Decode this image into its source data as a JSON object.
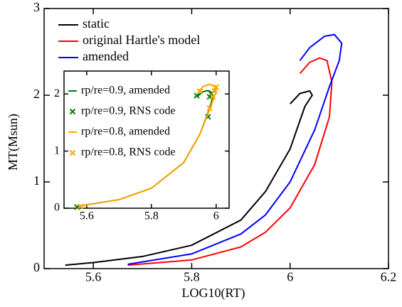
{
  "chart_data": [
    {
      "type": "line",
      "xlabel": "LOG10(RT)",
      "ylabel": "MT(Msun)",
      "xlim": [
        5.5,
        6.2
      ],
      "xticks": [
        5.6,
        5.8,
        6,
        6.2
      ],
      "ylim": [
        0,
        3
      ],
      "yticks": [
        0,
        1,
        2,
        3
      ],
      "legend": "upper left",
      "series": [
        {
          "name": "static",
          "color": "#000000",
          "x": [
            5.543,
            5.6,
            5.7,
            5.8,
            5.9,
            5.95,
            6.0,
            6.03,
            6.045,
            6.04,
            6.02,
            6.0
          ],
          "values": [
            0.04,
            0.07,
            0.14,
            0.27,
            0.56,
            0.89,
            1.38,
            1.87,
            2.0,
            2.05,
            2.02,
            1.9
          ]
        },
        {
          "name": "original Hartle's model",
          "color": "#ff0000",
          "x": [
            5.67,
            5.8,
            5.9,
            5.95,
            6.0,
            6.05,
            6.08,
            6.085,
            6.075,
            6.06,
            6.04,
            6.02
          ],
          "values": [
            0.04,
            0.1,
            0.25,
            0.42,
            0.7,
            1.2,
            1.75,
            2.15,
            2.4,
            2.43,
            2.38,
            2.25
          ]
        },
        {
          "name": "amended",
          "color": "#0000ff",
          "x": [
            5.67,
            5.8,
            5.9,
            5.95,
            6.0,
            6.05,
            6.08,
            6.1,
            6.105,
            6.09,
            6.07,
            6.04,
            6.02
          ],
          "values": [
            0.05,
            0.17,
            0.4,
            0.62,
            1.0,
            1.6,
            2.1,
            2.4,
            2.6,
            2.7,
            2.68,
            2.55,
            2.4
          ]
        }
      ]
    },
    {
      "type": "line",
      "xlim": [
        5.53,
        6.04
      ],
      "xticks": [
        5.6,
        5.8,
        6
      ],
      "ylim": [
        0,
        2.4
      ],
      "yticks": [
        0,
        1,
        2
      ],
      "legend": "upper left",
      "series": [
        {
          "name": "rp/re=0.9, amended",
          "color": "#008000",
          "mode": "line",
          "x": [
            5.57,
            5.6,
            5.7,
            5.8,
            5.9,
            5.95,
            5.98,
            5.99,
            5.985,
            5.975,
            5.96,
            5.94
          ],
          "values": [
            0.02,
            0.06,
            0.15,
            0.35,
            0.8,
            1.3,
            1.75,
            1.95,
            2.03,
            2.06,
            2.04,
            1.95
          ]
        },
        {
          "name": "rp/re=0.9, RNS code",
          "color": "#008000",
          "mode": "markers",
          "x": [
            5.57,
            5.975,
            5.98,
            5.985,
            5.94
          ],
          "values": [
            0.02,
            1.6,
            1.95,
            2.0,
            1.97
          ]
        },
        {
          "name": "rp/re=0.8, amended",
          "color": "#ffa500",
          "mode": "line",
          "x": [
            5.58,
            5.6,
            5.7,
            5.8,
            5.9,
            5.95,
            5.985,
            6.0,
            5.995,
            5.98,
            5.96,
            5.945
          ],
          "values": [
            0.03,
            0.06,
            0.15,
            0.35,
            0.8,
            1.3,
            1.8,
            2.05,
            2.13,
            2.17,
            2.13,
            2.04
          ]
        },
        {
          "name": "rp/re=0.8, RNS code",
          "color": "#ffa500",
          "mode": "markers",
          "x": [
            5.58,
            5.98,
            5.99,
            5.995,
            6.0,
            5.95
          ],
          "values": [
            0.03,
            1.75,
            1.95,
            2.05,
            2.12,
            2.05
          ]
        }
      ]
    }
  ]
}
